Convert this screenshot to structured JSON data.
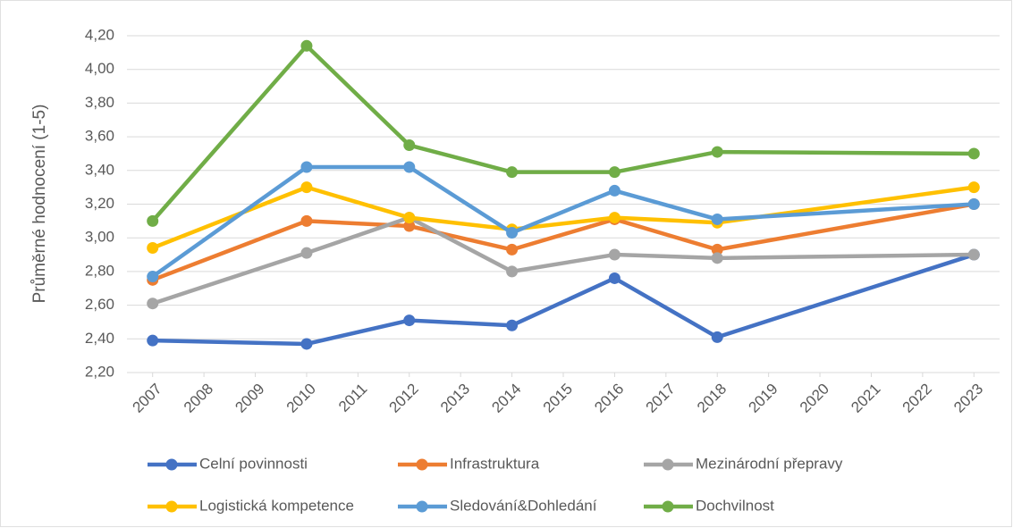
{
  "chart_data": {
    "type": "line",
    "y_label": "Průměrné hodnocení (1-5)",
    "x": [
      2007,
      2010,
      2012,
      2014,
      2016,
      2018,
      2023
    ],
    "xlim": [
      2006.5,
      2023.5
    ],
    "xticks": [
      2007,
      2008,
      2009,
      2010,
      2011,
      2012,
      2013,
      2014,
      2015,
      2016,
      2017,
      2018,
      2019,
      2020,
      2021,
      2022,
      2023
    ],
    "ylim": [
      2.2,
      4.2
    ],
    "yticks": [
      {
        "value": 2.2,
        "label": "2,20"
      },
      {
        "value": 2.4,
        "label": "2,40"
      },
      {
        "value": 2.6,
        "label": "2,60"
      },
      {
        "value": 2.8,
        "label": "2,80"
      },
      {
        "value": 3.0,
        "label": "3,00"
      },
      {
        "value": 3.2,
        "label": "3,20"
      },
      {
        "value": 3.4,
        "label": "3,40"
      },
      {
        "value": 3.6,
        "label": "3,60"
      },
      {
        "value": 3.8,
        "label": "3,80"
      },
      {
        "value": 4.0,
        "label": "4,00"
      },
      {
        "value": 4.2,
        "label": "4,20"
      }
    ],
    "grid": true,
    "legend": "bottom",
    "series": [
      {
        "name": "Celní povinnosti",
        "color": "#4472c4",
        "values": [
          2.39,
          2.37,
          2.51,
          2.48,
          2.76,
          2.41,
          2.9
        ]
      },
      {
        "name": "Infrastruktura",
        "color": "#ed7d31",
        "values": [
          2.75,
          3.1,
          3.07,
          2.93,
          3.11,
          2.93,
          3.2
        ]
      },
      {
        "name": "Mezinárodní přepravy",
        "color": "#a5a5a5",
        "values": [
          2.61,
          2.91,
          3.12,
          2.8,
          2.9,
          2.88,
          2.9
        ]
      },
      {
        "name": "Logistická kompetence",
        "color": "#ffc000",
        "values": [
          2.94,
          3.3,
          3.12,
          3.05,
          3.12,
          3.09,
          3.3
        ]
      },
      {
        "name": "Sledování&Dohledání",
        "color": "#5b9bd5",
        "values": [
          2.77,
          3.42,
          3.42,
          3.03,
          3.28,
          3.11,
          3.2
        ]
      },
      {
        "name": "Dochvilnost",
        "color": "#70ad47",
        "values": [
          3.1,
          4.14,
          3.55,
          3.39,
          3.39,
          3.51,
          3.5
        ]
      }
    ]
  }
}
